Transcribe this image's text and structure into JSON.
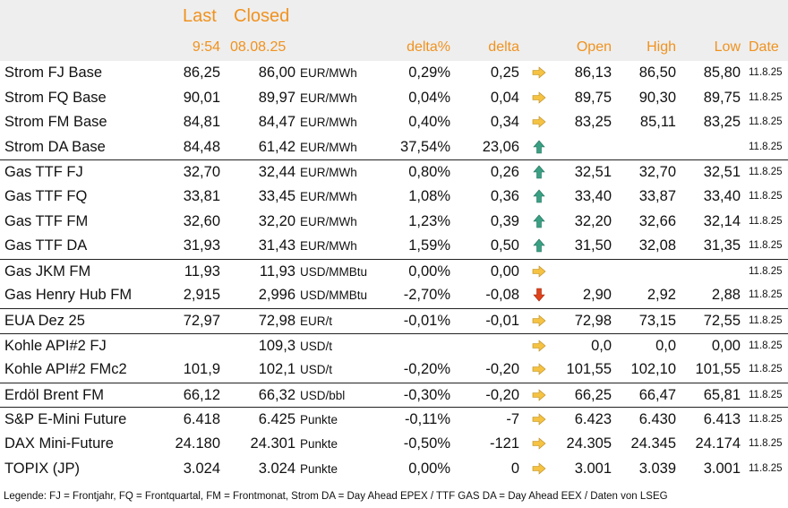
{
  "header": {
    "last_label": "Last",
    "closed_label": "Closed",
    "last_time": "9:54",
    "closed_date": "08.08.25",
    "delta_pct": "delta%",
    "delta": "delta",
    "open": "Open",
    "high": "High",
    "low": "Low",
    "date": "Date"
  },
  "colors": {
    "header_text": "#f0921e",
    "header_bg": "#eeeeee",
    "arrow_right": "#f5c242",
    "arrow_up": "#3aa084",
    "arrow_down": "#e0421a"
  },
  "rows": [
    {
      "name": "Strom FJ Base",
      "last": "86,25",
      "closed": "86,00",
      "unit": "EUR/MWh",
      "delta_pct": "0,29%",
      "delta": "0,25",
      "arrow": "right",
      "open": "86,13",
      "high": "86,50",
      "low": "85,80",
      "date": "11.8.25",
      "sep": false
    },
    {
      "name": "Strom FQ Base",
      "last": "90,01",
      "closed": "89,97",
      "unit": "EUR/MWh",
      "delta_pct": "0,04%",
      "delta": "0,04",
      "arrow": "right",
      "open": "89,75",
      "high": "90,30",
      "low": "89,75",
      "date": "11.8.25",
      "sep": false
    },
    {
      "name": "Strom FM Base",
      "last": "84,81",
      "closed": "84,47",
      "unit": "EUR/MWh",
      "delta_pct": "0,40%",
      "delta": "0,34",
      "arrow": "right",
      "open": "83,25",
      "high": "85,11",
      "low": "83,25",
      "date": "11.8.25",
      "sep": false
    },
    {
      "name": "Strom DA Base",
      "last": "84,48",
      "closed": "61,42",
      "unit": "EUR/MWh",
      "delta_pct": "37,54%",
      "delta": "23,06",
      "arrow": "up",
      "open": "",
      "high": "",
      "low": "",
      "date": "11.8.25",
      "sep": false
    },
    {
      "name": "Gas TTF FJ",
      "last": "32,70",
      "closed": "32,44",
      "unit": "EUR/MWh",
      "delta_pct": "0,80%",
      "delta": "0,26",
      "arrow": "up",
      "open": "32,51",
      "high": "32,70",
      "low": "32,51",
      "date": "11.8.25",
      "sep": true
    },
    {
      "name": "Gas TTF FQ",
      "last": "33,81",
      "closed": "33,45",
      "unit": "EUR/MWh",
      "delta_pct": "1,08%",
      "delta": "0,36",
      "arrow": "up",
      "open": "33,40",
      "high": "33,87",
      "low": "33,40",
      "date": "11.8.25",
      "sep": false
    },
    {
      "name": "Gas TTF FM",
      "last": "32,60",
      "closed": "32,20",
      "unit": "EUR/MWh",
      "delta_pct": "1,23%",
      "delta": "0,39",
      "arrow": "up",
      "open": "32,20",
      "high": "32,66",
      "low": "32,14",
      "date": "11.8.25",
      "sep": false
    },
    {
      "name": "Gas TTF DA",
      "last": "31,93",
      "closed": "31,43",
      "unit": "EUR/MWh",
      "delta_pct": "1,59%",
      "delta": "0,50",
      "arrow": "up",
      "open": "31,50",
      "high": "32,08",
      "low": "31,35",
      "date": "11.8.25",
      "sep": false
    },
    {
      "name": "Gas JKM FM",
      "last": "11,93",
      "closed": "11,93",
      "unit": "USD/MMBtu",
      "delta_pct": "0,00%",
      "delta": "0,00",
      "arrow": "right",
      "open": "",
      "high": "",
      "low": "",
      "date": "11.8.25",
      "sep": true
    },
    {
      "name": "Gas Henry Hub FM",
      "last": "2,915",
      "closed": "2,996",
      "unit": "USD/MMBtu",
      "delta_pct": "-2,70%",
      "delta": "-0,08",
      "arrow": "down",
      "open": "2,90",
      "high": "2,92",
      "low": "2,88",
      "date": "11.8.25",
      "sep": false
    },
    {
      "name": "EUA Dez 25",
      "last": "72,97",
      "closed": "72,98",
      "unit": "EUR/t",
      "delta_pct": "-0,01%",
      "delta": "-0,01",
      "arrow": "right",
      "open": "72,98",
      "high": "73,15",
      "low": "72,55",
      "date": "11.8.25",
      "sep": true
    },
    {
      "name": "Kohle API#2 FJ",
      "last": "",
      "closed": "109,3",
      "unit": "USD/t",
      "delta_pct": "",
      "delta": "",
      "arrow": "right",
      "open": "0,0",
      "high": "0,0",
      "low": "0,00",
      "date": "11.8.25",
      "sep": true
    },
    {
      "name": "Kohle API#2 FMc2",
      "last": "101,9",
      "closed": "102,1",
      "unit": "USD/t",
      "delta_pct": "-0,20%",
      "delta": "-0,20",
      "arrow": "right",
      "open": "101,55",
      "high": "102,10",
      "low": "101,55",
      "date": "11.8.25",
      "sep": false
    },
    {
      "name": "Erdöl Brent FM",
      "last": "66,12",
      "closed": "66,32",
      "unit": "USD/bbl",
      "delta_pct": "-0,30%",
      "delta": "-0,20",
      "arrow": "right",
      "open": "66,25",
      "high": "66,47",
      "low": "65,81",
      "date": "11.8.25",
      "sep": true
    },
    {
      "name": "S&P E-Mini Future",
      "last": "6.418",
      "closed": "6.425",
      "unit": "Punkte",
      "delta_pct": "-0,11%",
      "delta": "-7",
      "arrow": "right",
      "open": "6.423",
      "high": "6.430",
      "low": "6.413",
      "date": "11.8.25",
      "sep": true
    },
    {
      "name": "DAX Mini-Future",
      "last": "24.180",
      "closed": "24.301",
      "unit": "Punkte",
      "delta_pct": "-0,50%",
      "delta": "-121",
      "arrow": "right",
      "open": "24.305",
      "high": "24.345",
      "low": "24.174",
      "date": "11.8.25",
      "sep": false
    },
    {
      "name": "TOPIX (JP)",
      "last": "3.024",
      "closed": "3.024",
      "unit": "Punkte",
      "delta_pct": "0,00%",
      "delta": "0",
      "arrow": "right",
      "open": "3.001",
      "high": "3.039",
      "low": "3.001",
      "date": "11.8.25",
      "sep": false
    }
  ],
  "legend": "Legende: FJ = Frontjahr, FQ = Frontquartal, FM = Frontmonat, Strom DA = Day Ahead EPEX / TTF GAS DA = Day Ahead EEX / Daten von LSEG"
}
